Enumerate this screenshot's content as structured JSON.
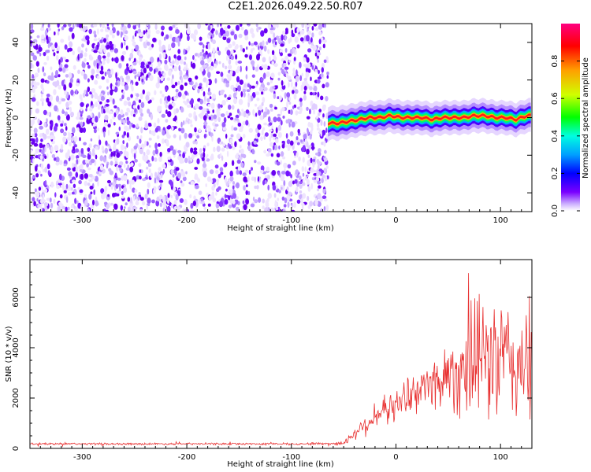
{
  "page": {
    "title": "C2E1.2026.049.22.50.R07"
  },
  "chart_data": [
    {
      "id": "spectrogram",
      "type": "heatmap",
      "title": "C2E1.2026.049.22.50.R07",
      "xlabel": "Height of straight line (km)",
      "ylabel": "Frequency (Hz)",
      "xlim": [
        -350,
        130
      ],
      "ylim": [
        -50,
        50
      ],
      "xticks": [
        -300,
        -200,
        -100,
        0,
        100
      ],
      "yticks": [
        -40,
        -20,
        0,
        20,
        40
      ],
      "noise_region_x": [
        -350,
        -65
      ],
      "signal_trace": {
        "x": [
          -65,
          -55,
          -45,
          -35,
          -25,
          -15,
          -5,
          5,
          15,
          25,
          35,
          45,
          55,
          65,
          75,
          85,
          95,
          105,
          115,
          125,
          130
        ],
        "freq": [
          -3,
          -3,
          -2,
          -1,
          0,
          0,
          1,
          0,
          0,
          0,
          -1,
          0,
          0,
          0,
          1,
          1,
          0,
          0,
          -1,
          1,
          1
        ]
      },
      "colorbar": {
        "label": "Normalized spectral amplitude",
        "range": [
          0,
          1
        ],
        "ticks": [
          "0.0",
          "0.2",
          "0.4",
          "0.6",
          "0.8"
        ],
        "tick_values": [
          0,
          0.2,
          0.4,
          0.6,
          0.8
        ],
        "colors": [
          "#ffffff",
          "#c8a8ff",
          "#7a00ff",
          "#0000ff",
          "#00a0ff",
          "#00ffe0",
          "#00ff00",
          "#d0ff00",
          "#ffa000",
          "#ff0000",
          "#ff0080"
        ]
      }
    },
    {
      "id": "snr",
      "type": "line",
      "xlabel": "Height of straight line (km)",
      "ylabel": "SNR (10 * v/v)",
      "xlim": [
        -350,
        130
      ],
      "ylim": [
        0,
        7500
      ],
      "xticks": [
        -300,
        -200,
        -100,
        0,
        100
      ],
      "yticks": [
        0,
        2000,
        4000,
        6000
      ],
      "series": [
        {
          "name": "SNR",
          "color": "#e83030",
          "envelope_x": [
            -350,
            -300,
            -200,
            -100,
            -50,
            -40,
            -30,
            -20,
            -10,
            0,
            10,
            20,
            30,
            40,
            50,
            60,
            70,
            80,
            90,
            100,
            110,
            120,
            130
          ],
          "envelope_y": [
            180,
            180,
            180,
            180,
            200,
            600,
            900,
            1300,
            1500,
            1700,
            2100,
            2300,
            2500,
            2700,
            2900,
            3100,
            3300,
            3500,
            3600,
            3500,
            3400,
            3300,
            3300
          ],
          "spread_y": [
            50,
            50,
            50,
            50,
            80,
            300,
            500,
            600,
            700,
            700,
            800,
            900,
            1100,
            1400,
            1800,
            2200,
            2600,
            2900,
            3100,
            3000,
            2900,
            2900,
            2900
          ]
        }
      ]
    }
  ]
}
